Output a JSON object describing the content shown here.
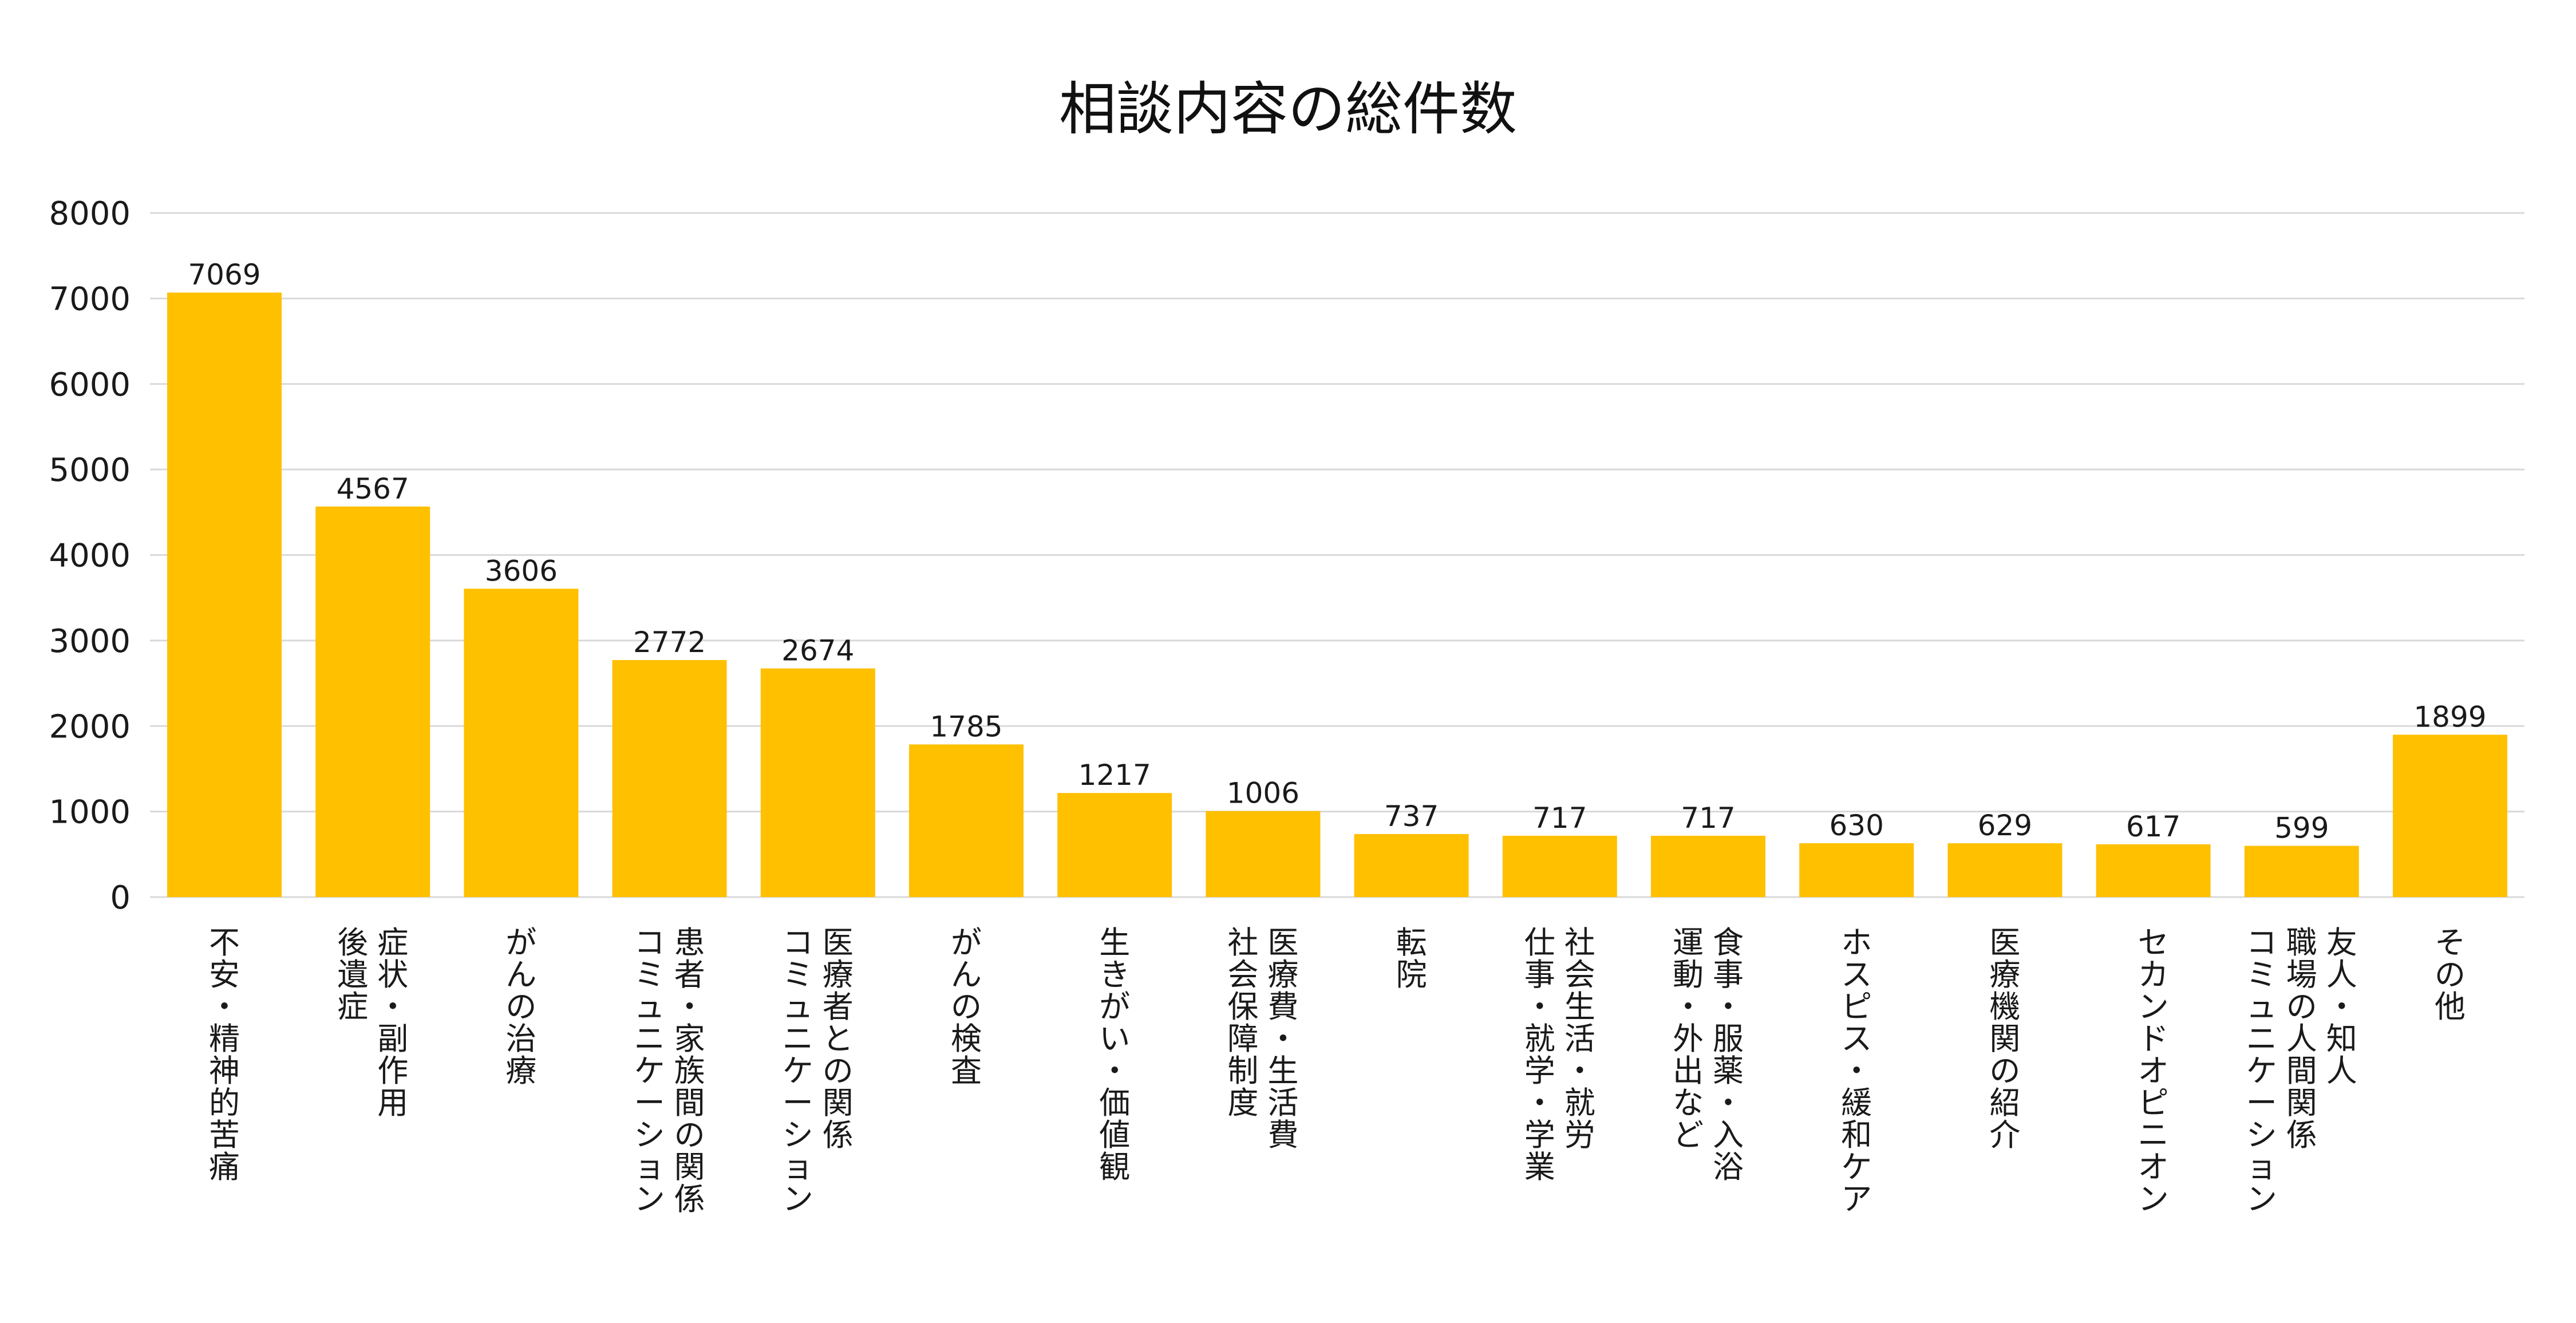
{
  "chart_data": {
    "type": "bar",
    "title": "相談内容の総件数",
    "xlabel": "",
    "ylabel": "",
    "ylim": [
      0,
      8000
    ],
    "yticks": [
      0,
      1000,
      2000,
      3000,
      4000,
      5000,
      6000,
      7000,
      8000
    ],
    "grid": true,
    "legend": "none",
    "bar_color": "#FFC000",
    "categories": [
      [
        "不安・精神的苦痛"
      ],
      [
        "症状・副作用",
        "後遺症"
      ],
      [
        "がんの治療"
      ],
      [
        "患者・家族間の関係",
        "コミュニケーション"
      ],
      [
        "医療者との関係",
        "コミュニケーション"
      ],
      [
        "がんの検査"
      ],
      [
        "生きがい・価値観"
      ],
      [
        "医療費・生活費",
        "社会保障制度"
      ],
      [
        "転院"
      ],
      [
        "社会生活・就労",
        "仕事・就学・学業"
      ],
      [
        "食事・服薬・入浴",
        "運動・外出など"
      ],
      [
        "ホスピス・緩和ケア"
      ],
      [
        "医療機関の紹介"
      ],
      [
        "セカンドオピニオン"
      ],
      [
        "友人・知人",
        "職場の人間関係",
        "コミュニケーション"
      ],
      [
        "その他"
      ]
    ],
    "values": [
      7069,
      4567,
      3606,
      2772,
      2674,
      1785,
      1217,
      1006,
      737,
      717,
      717,
      630,
      629,
      617,
      599,
      1899
    ]
  }
}
